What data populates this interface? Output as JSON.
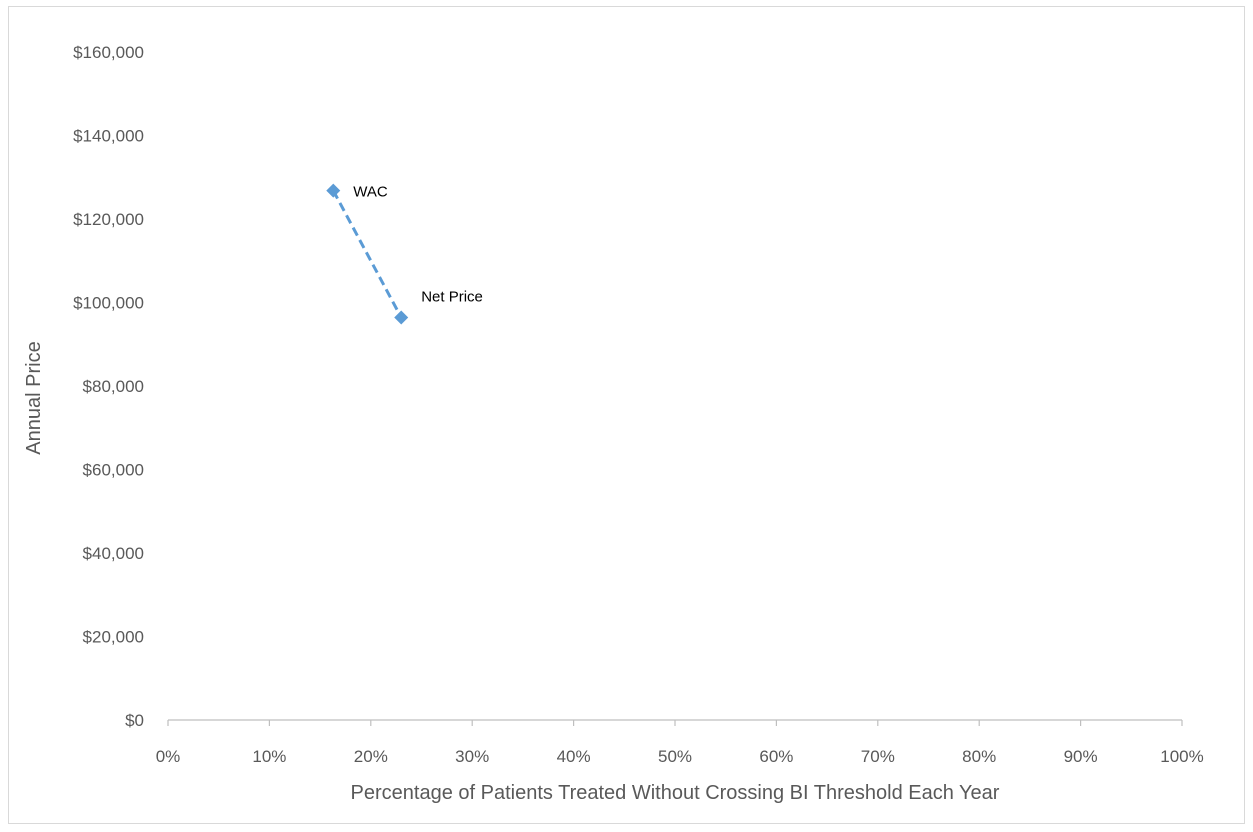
{
  "chart_data": {
    "type": "scatter",
    "title": "",
    "xlabel": "Percentage of Patients Treated Without Crossing BI Threshold Each Year",
    "ylabel": "Annual Price",
    "xlim": [
      0,
      100
    ],
    "ylim": [
      0,
      160000
    ],
    "x_ticks": [
      0,
      10,
      20,
      30,
      40,
      50,
      60,
      70,
      80,
      90,
      100
    ],
    "x_tick_labels": [
      "0%",
      "10%",
      "20%",
      "30%",
      "40%",
      "50%",
      "60%",
      "70%",
      "80%",
      "90%",
      "100%"
    ],
    "y_ticks": [
      0,
      20000,
      40000,
      60000,
      80000,
      100000,
      120000,
      140000,
      160000
    ],
    "y_tick_labels": [
      "$0",
      "$20,000",
      "$40,000",
      "$60,000",
      "$80,000",
      "$100,000",
      "$120,000",
      "$140,000",
      "$160,000"
    ],
    "grid": false,
    "legend": "none",
    "series": [
      {
        "color": "#5b9bd5",
        "line_style": "dashed",
        "marker": "diamond",
        "points": [
          {
            "label": "WAC",
            "x": 16.3,
            "y": 126800
          },
          {
            "label": "Net Price",
            "x": 23.0,
            "y": 96400
          }
        ]
      }
    ]
  }
}
